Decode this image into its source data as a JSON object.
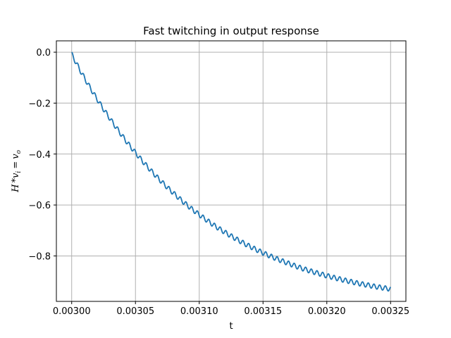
{
  "chart_data": {
    "type": "line",
    "title": "Fast twitching in output response",
    "xlabel": "t",
    "ylabel": {
      "var1": "H",
      "op": "*",
      "var2": "v",
      "sub2": "i",
      "eq": "=",
      "var3": "v",
      "sub3": "o"
    },
    "xlim": [
      0.002988,
      0.003262
    ],
    "ylim": [
      -0.9785,
      0.0445
    ],
    "grid": true,
    "xticks": [
      {
        "value": 0.003,
        "label": "0.00300"
      },
      {
        "value": 0.00305,
        "label": "0.00305"
      },
      {
        "value": 0.0031,
        "label": "0.00310"
      },
      {
        "value": 0.00315,
        "label": "0.00315"
      },
      {
        "value": 0.0032,
        "label": "0.00320"
      },
      {
        "value": 0.00325,
        "label": "0.00325"
      }
    ],
    "yticks": [
      {
        "value": 0.0,
        "label": "0.0"
      },
      {
        "value": -0.2,
        "label": "−0.2"
      },
      {
        "value": -0.4,
        "label": "−0.4"
      },
      {
        "value": -0.6,
        "label": "−0.6"
      },
      {
        "value": -0.8,
        "label": "−0.8"
      }
    ],
    "series": [
      {
        "color": "#1f77b4",
        "x": [
          0.003,
          0.00300625,
          0.0030125,
          0.00301875,
          0.003025,
          0.00303125,
          0.0030375,
          0.00304375,
          0.00305,
          0.00305625,
          0.0030625,
          0.00306875,
          0.003075,
          0.00308125,
          0.0030875,
          0.00309375,
          0.0031,
          0.00310625,
          0.0031125,
          0.00311875,
          0.003125,
          0.00313125,
          0.0031375,
          0.00314375,
          0.00315,
          0.00315625,
          0.0031625,
          0.00316875,
          0.003175,
          0.00318125,
          0.0031875,
          0.00319375,
          0.0032,
          0.00320625,
          0.0032125,
          0.00321875,
          0.003225,
          0.00323125,
          0.0032375,
          0.00324375,
          0.00325
        ],
        "y": [
          0.0,
          -0.06,
          -0.115,
          -0.167,
          -0.216,
          -0.262,
          -0.306,
          -0.348,
          -0.387,
          -0.424,
          -0.459,
          -0.492,
          -0.523,
          -0.552,
          -0.58,
          -0.606,
          -0.63,
          -0.653,
          -0.675,
          -0.695,
          -0.714,
          -0.732,
          -0.749,
          -0.765,
          -0.78,
          -0.794,
          -0.807,
          -0.819,
          -0.831,
          -0.842,
          -0.852,
          -0.861,
          -0.87,
          -0.878,
          -0.886,
          -0.893,
          -0.9,
          -0.906,
          -0.912,
          -0.917,
          -0.922
        ]
      }
    ]
  }
}
